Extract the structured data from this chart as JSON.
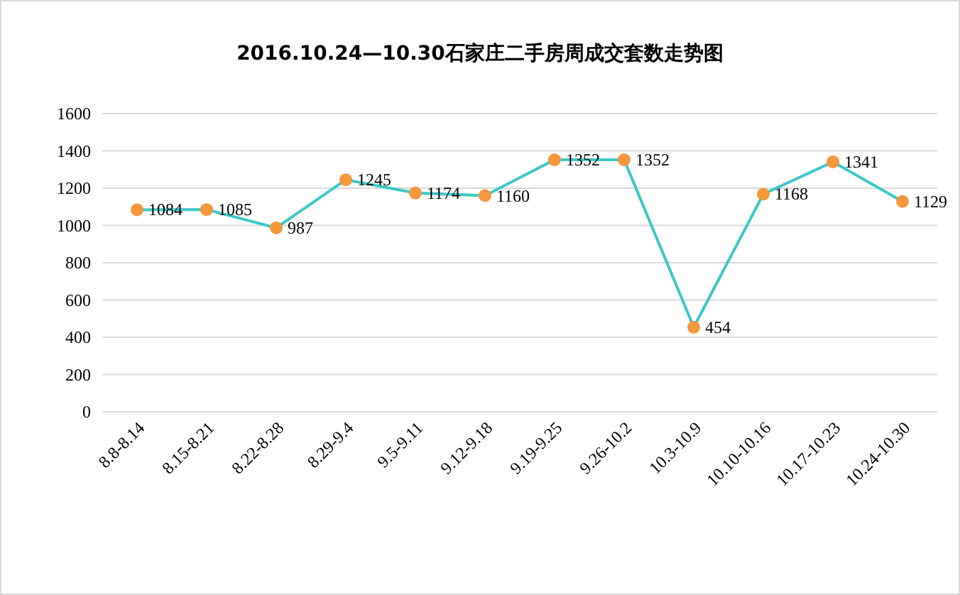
{
  "chart_data": {
    "type": "line",
    "title": "2016.10.24—10.30石家庄二手房周成交套数走势图",
    "categories": [
      "8.8-8.14",
      "8.15-8.21",
      "8.22-8.28",
      "8.29-9.4",
      "9.5-9.11",
      "9.12-9.18",
      "9.19-9.25",
      "9.26-10.2",
      "10.3-10.9",
      "10.10-10.16",
      "10.17-10.23",
      "10.24-10.30"
    ],
    "series": [
      {
        "color": "#3cc8c8",
        "colors": [
          "#f5973a",
          "#f5973a",
          "#f5973a",
          "#f5973a",
          "#f5973a",
          "#f5973a",
          "#f5973a",
          "#f5973a",
          "#f5973a",
          "#f5973a",
          "#f5973a",
          "#f5973a"
        ],
        "values": [
          1084,
          1085,
          987,
          1245,
          1174,
          1160,
          1352,
          1352,
          454,
          1168,
          1341,
          1129
        ]
      }
    ],
    "ylim": [
      0,
      1600
    ],
    "yticks": [
      0,
      200,
      400,
      600,
      800,
      1000,
      1200,
      1400,
      1600
    ],
    "grid": "y",
    "marker": "circle",
    "line_style": "solid",
    "data_labels": true
  }
}
